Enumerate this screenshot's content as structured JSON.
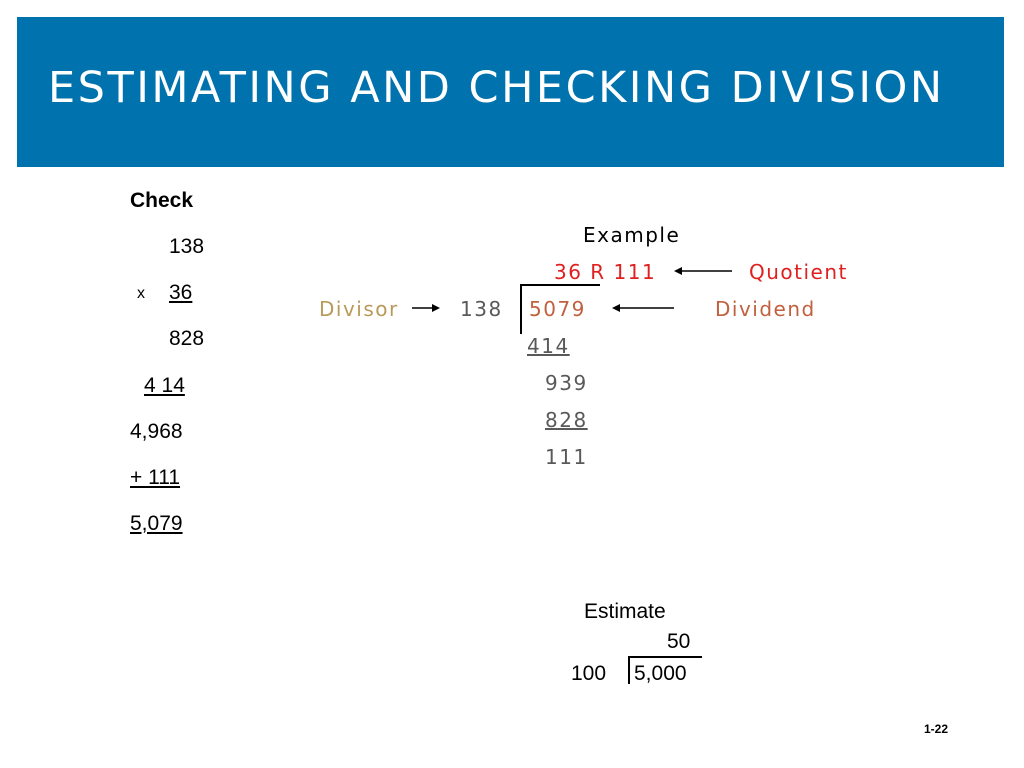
{
  "slide": {
    "title": "ESTIMATING AND CHECKING DIVISION",
    "page_number": "1-22"
  },
  "check": {
    "heading": "Check",
    "multiplicand": "138",
    "times_sign": "x",
    "multiplier": "36",
    "partial_1": "828",
    "partial_2": "4 14",
    "product": "4,968",
    "plus_remainder": "+ 111",
    "result": "5,079"
  },
  "example": {
    "heading": "Example",
    "quotient": "36 R 111",
    "quotient_label": "Quotient",
    "divisor_label": "Divisor",
    "divisor": "138",
    "dividend": "5079",
    "dividend_label": "Dividend",
    "step_subtract_1": "414",
    "step_remainder_1": "939",
    "step_subtract_2": "828",
    "final_remainder": "111"
  },
  "estimate": {
    "heading": "Estimate",
    "quotient": "50",
    "divisor": "100",
    "dividend": "5,000"
  },
  "colors": {
    "banner": "#0072ad",
    "quotient": "#e01f1f",
    "divisor_label": "#b99a5a",
    "dividend": "#c0603e",
    "numbers": "#595959"
  }
}
